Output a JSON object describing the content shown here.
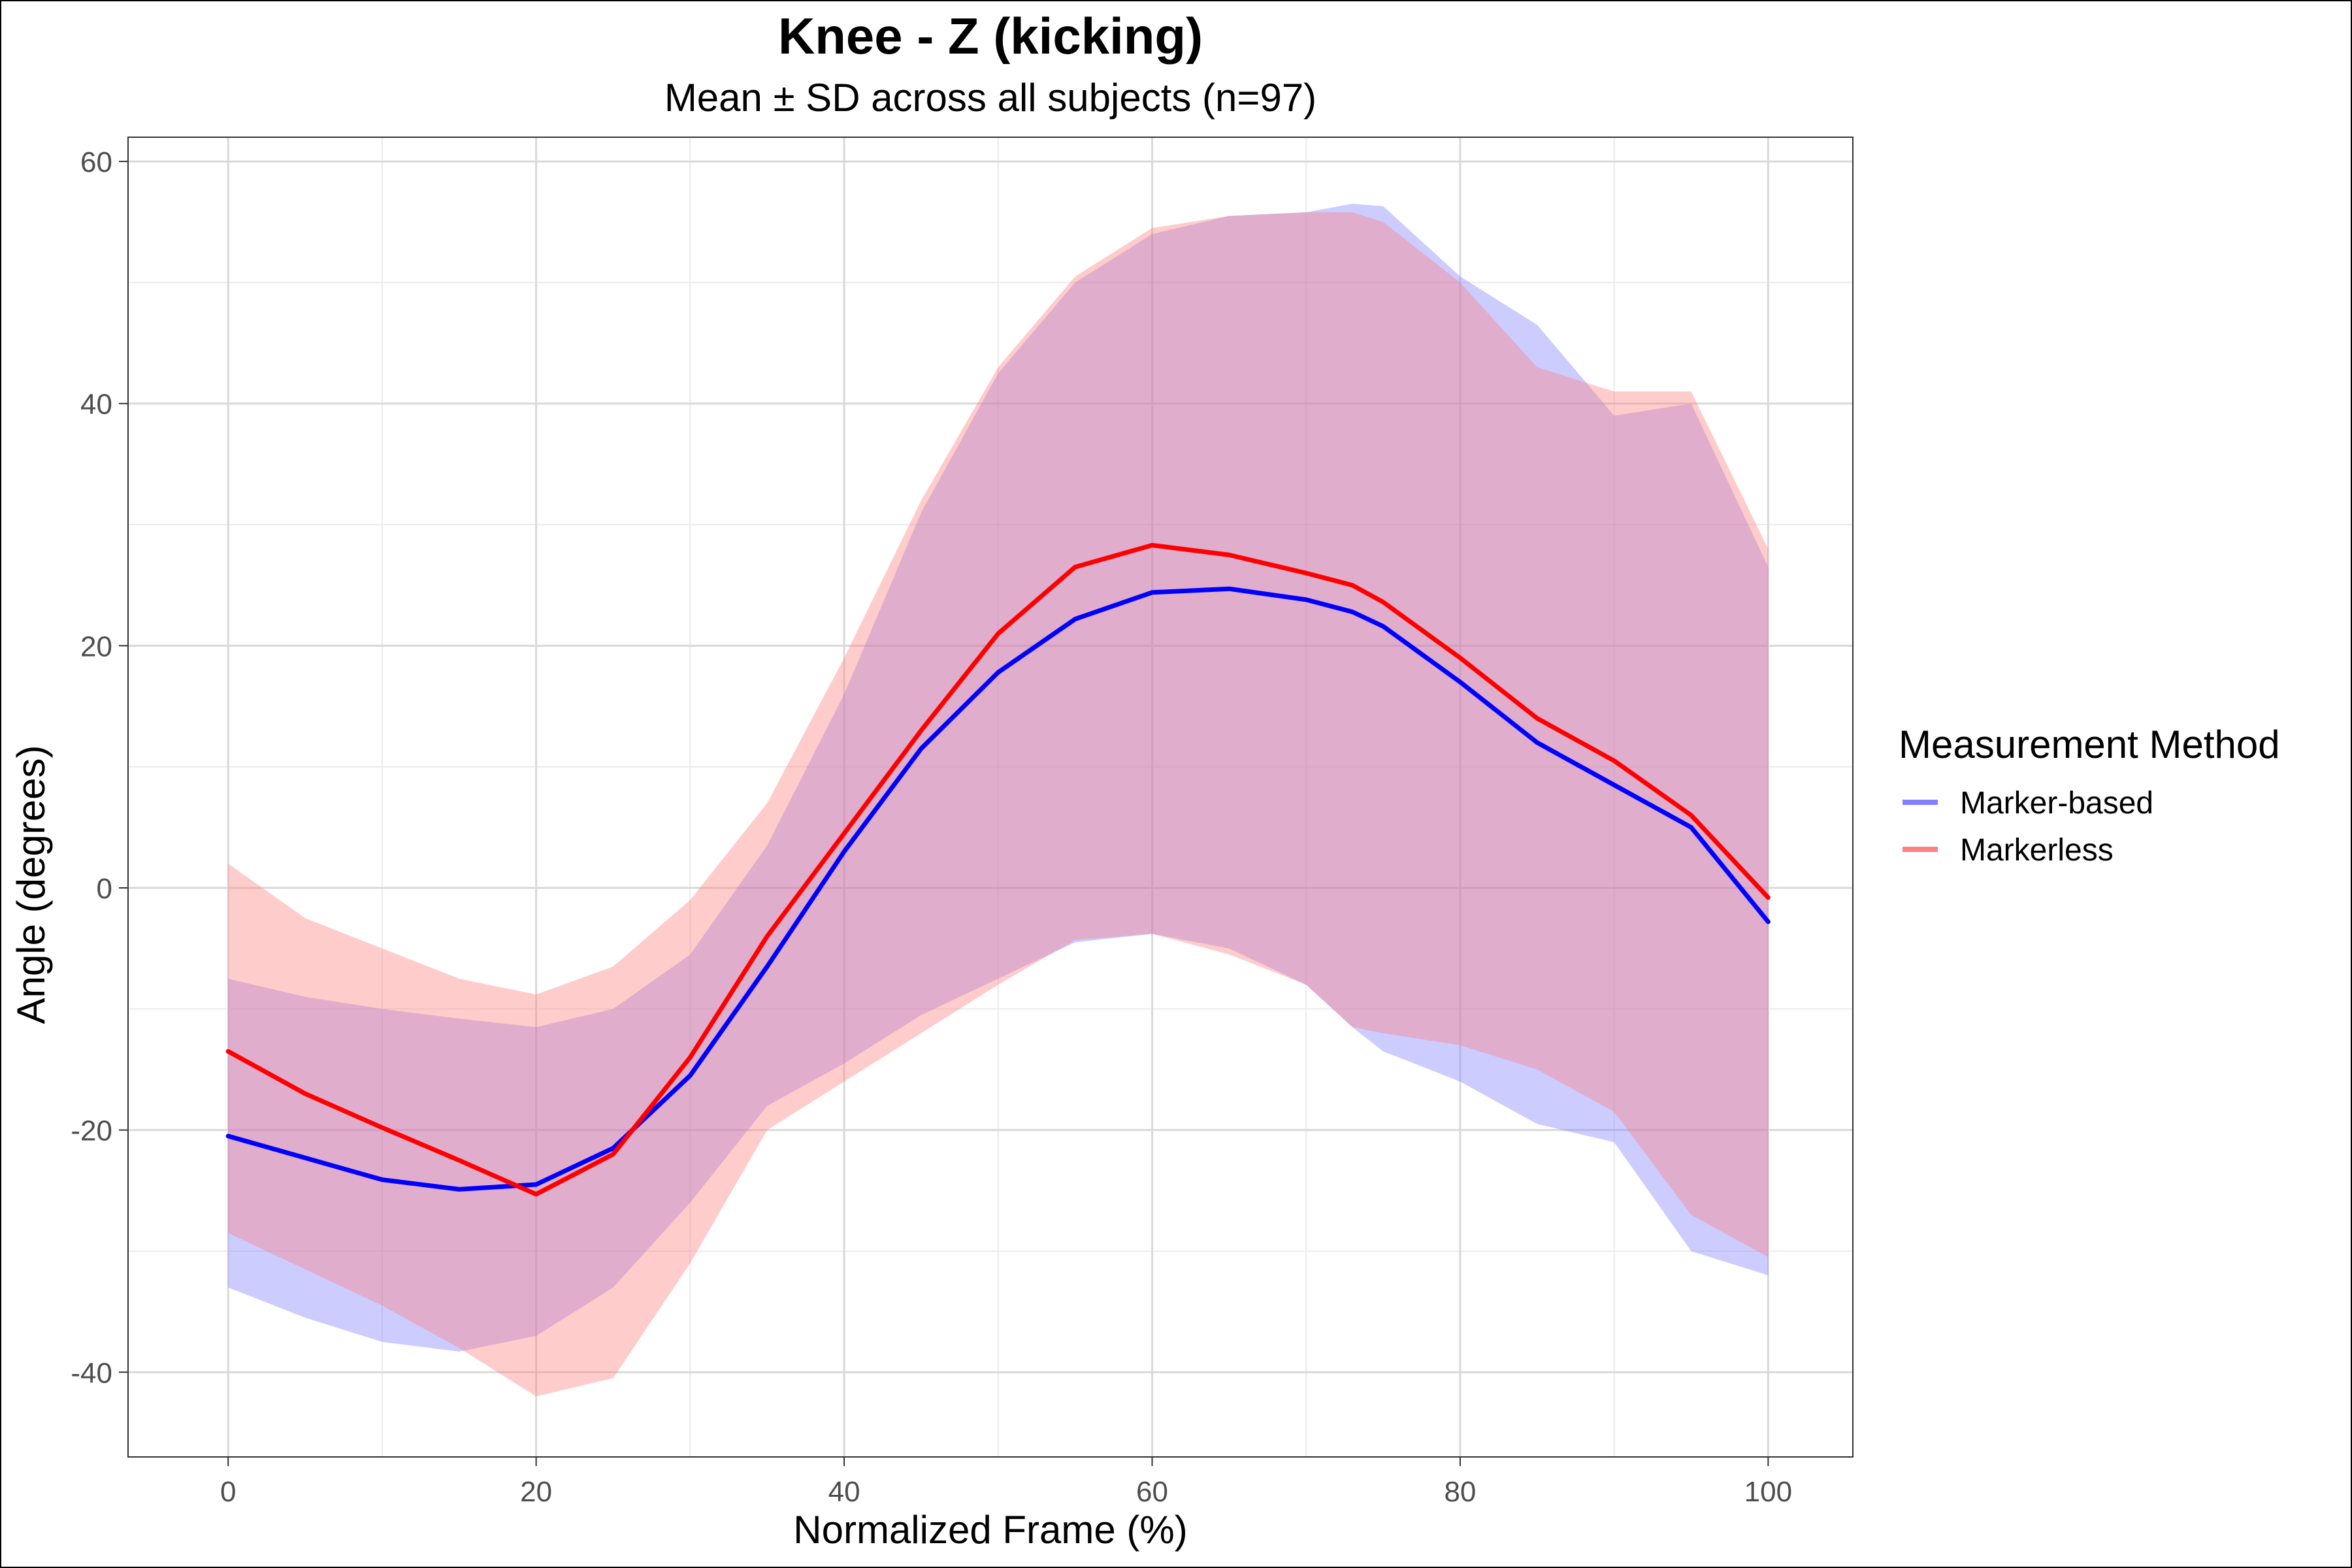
{
  "chart_data": {
    "type": "line",
    "title": "Knee - Z (kicking)",
    "subtitle": "Mean ± SD across all subjects (n=97)",
    "xlabel": "Normalized Frame (%)",
    "ylabel": "Angle (degrees)",
    "xlim": [
      -6.5,
      105.5
    ],
    "ylim": [
      -47,
      62
    ],
    "x_ticks": [
      0,
      20,
      40,
      60,
      80,
      100
    ],
    "y_ticks": [
      -40,
      -20,
      0,
      20,
      40,
      60
    ],
    "x_tick_labels": [
      "0",
      "20",
      "40",
      "60",
      "80",
      "100"
    ],
    "y_tick_labels": [
      "-40",
      "-20",
      "0",
      "20",
      "40",
      "60"
    ],
    "grid": true,
    "legend": {
      "title": "Measurement Method",
      "placement": "right",
      "entries": [
        "Marker-based",
        "Markerless"
      ]
    },
    "x": [
      0,
      5,
      10,
      15,
      20,
      25,
      30,
      35,
      40,
      45,
      50,
      55,
      60,
      65,
      70,
      73,
      75,
      80,
      85,
      90,
      95,
      100
    ],
    "series": [
      {
        "name": "Marker-based",
        "color": "#0000ff",
        "band_color": "#8080ff",
        "mean": [
          -20.5,
          -22.3,
          -24.1,
          -24.9,
          -24.5,
          -21.5,
          -15.5,
          -6.5,
          3.0,
          11.5,
          17.8,
          22.2,
          24.4,
          24.7,
          23.8,
          22.8,
          21.6,
          17.0,
          12.0,
          8.5,
          5.0,
          -2.8
        ],
        "upper": [
          -7.5,
          -9.0,
          -10.0,
          -10.8,
          -11.5,
          -10.0,
          -5.5,
          3.5,
          16.0,
          31.0,
          42.5,
          50.0,
          54.0,
          55.5,
          55.8,
          56.5,
          56.3,
          50.5,
          46.5,
          39.0,
          40.0,
          26.5
        ],
        "lower": [
          -33.0,
          -35.5,
          -37.5,
          -38.3,
          -37.0,
          -33.0,
          -26.0,
          -18.0,
          -14.5,
          -10.5,
          -7.5,
          -4.5,
          -3.8,
          -5.0,
          -8.0,
          -11.5,
          -13.5,
          -16.0,
          -19.5,
          -21.0,
          -30.0,
          -32.0
        ]
      },
      {
        "name": "Markerless",
        "color": "#ff0000",
        "band_color": "#ff8080",
        "mean": [
          -13.5,
          -17.0,
          -19.8,
          -22.5,
          -25.3,
          -22.0,
          -14.0,
          -4.0,
          4.5,
          13.0,
          21.0,
          26.5,
          28.3,
          27.5,
          26.0,
          25.0,
          23.6,
          19.0,
          14.0,
          10.5,
          6.0,
          -0.8
        ],
        "upper": [
          2.0,
          -2.5,
          -5.0,
          -7.5,
          -8.8,
          -6.5,
          -1.0,
          7.0,
          19.0,
          32.0,
          43.0,
          50.5,
          54.5,
          55.5,
          55.8,
          55.8,
          55.0,
          50.0,
          43.0,
          41.0,
          41.0,
          28.0
        ],
        "lower": [
          -28.5,
          -31.5,
          -34.5,
          -38.0,
          -42.0,
          -40.5,
          -31.0,
          -20.0,
          -16.0,
          -12.0,
          -8.0,
          -4.3,
          -3.8,
          -5.5,
          -8.0,
          -11.5,
          -12.0,
          -13.0,
          -15.0,
          -18.5,
          -27.0,
          -30.5
        ]
      }
    ]
  }
}
